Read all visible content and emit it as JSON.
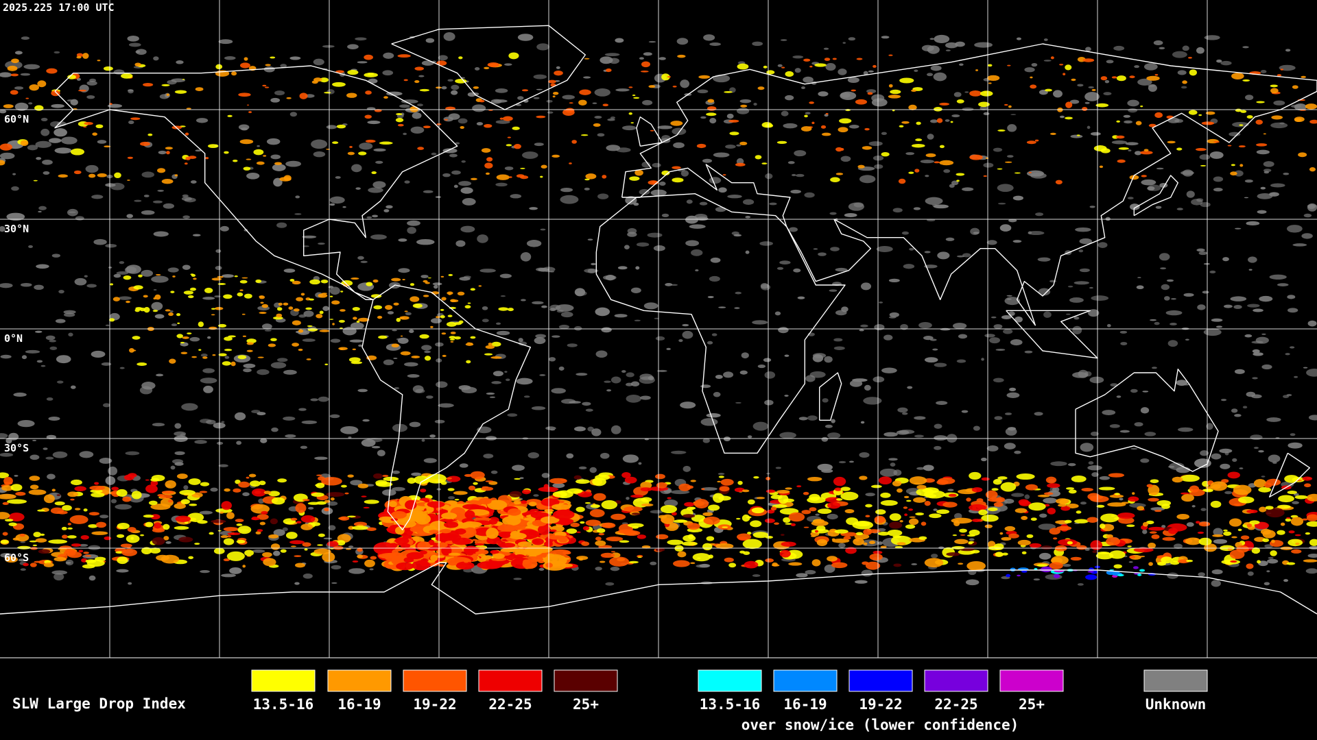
{
  "header": {
    "timestamp": "2025.225 17:00 UTC"
  },
  "grid": {
    "latitude_labels": [
      "60°N",
      "30°N",
      "0°N",
      "30°S",
      "60°S"
    ]
  },
  "legend": {
    "title": "SLW Large Drop Index",
    "items": [
      {
        "label": "13.5-16",
        "color": "#ffff00"
      },
      {
        "label": "16-19",
        "color": "#ff9900"
      },
      {
        "label": "19-22",
        "color": "#ff5500"
      },
      {
        "label": "22-25",
        "color": "#ee0000"
      },
      {
        "label": "25+",
        "color": "#5a0000"
      }
    ],
    "snow_items": [
      {
        "label": "13.5-16",
        "color": "#00ffff"
      },
      {
        "label": "16-19",
        "color": "#0088ff"
      },
      {
        "label": "19-22",
        "color": "#0000ff"
      },
      {
        "label": "22-25",
        "color": "#7700dd"
      },
      {
        "label": "25+",
        "color": "#cc00cc"
      }
    ],
    "snow_caption": "over snow/ice (lower confidence)",
    "unknown": {
      "label": "Unknown",
      "color": "#808080"
    }
  }
}
